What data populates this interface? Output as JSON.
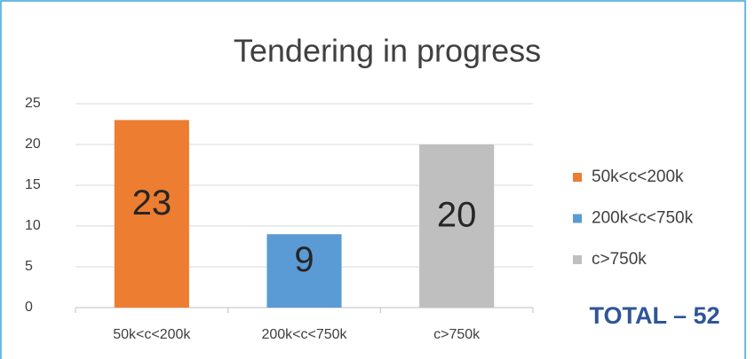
{
  "chart_data": {
    "type": "bar",
    "title": "Tendering in progress",
    "categories": [
      "50k<c<200k",
      "200k<c<750k",
      "c>750k"
    ],
    "values": [
      23,
      9,
      20
    ],
    "colors": [
      "#ed7d31",
      "#5b9bd5",
      "#bfbfbf"
    ],
    "ylim": [
      0,
      25
    ],
    "yticks": [
      0,
      5,
      10,
      15,
      20,
      25
    ],
    "grid": true,
    "legend": "right",
    "annotation": "TOTAL – 52"
  }
}
